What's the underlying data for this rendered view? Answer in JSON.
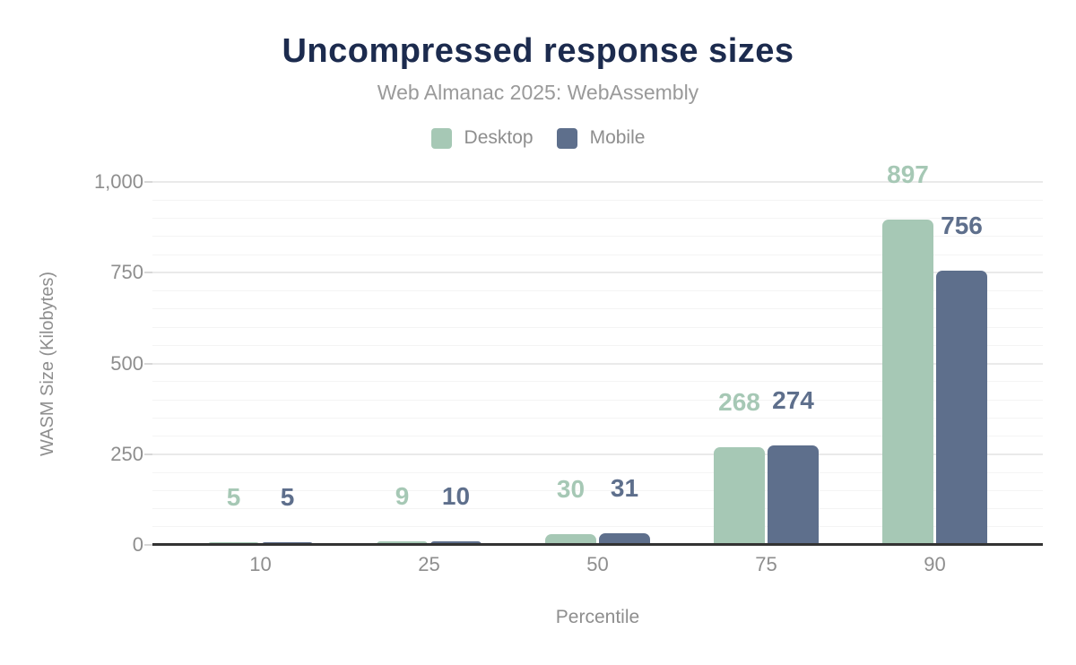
{
  "header": {
    "title": "Uncompressed response sizes",
    "subtitle": "Web Almanac 2025: WebAssembly"
  },
  "legend": {
    "items": [
      {
        "label": "Desktop",
        "color": "#a6c8b5"
      },
      {
        "label": "Mobile",
        "color": "#5e6f8c"
      }
    ]
  },
  "axes": {
    "x_title": "Percentile",
    "y_title": "WASM Size (Kilobytes)",
    "y_ticks": [
      {
        "value": 0,
        "label": "0"
      },
      {
        "value": 250,
        "label": "250"
      },
      {
        "value": 500,
        "label": "500"
      },
      {
        "value": 750,
        "label": "750"
      },
      {
        "value": 1000,
        "label": "1,000"
      }
    ]
  },
  "chart_data": {
    "type": "bar",
    "title": "Uncompressed response sizes",
    "subtitle": "Web Almanac 2025: WebAssembly",
    "xlabel": "Percentile",
    "ylabel": "WASM Size (Kilobytes)",
    "categories": [
      "10",
      "25",
      "50",
      "75",
      "90"
    ],
    "series": [
      {
        "name": "Desktop",
        "color": "#a6c8b5",
        "values": [
          5,
          9,
          30,
          268,
          897
        ]
      },
      {
        "name": "Mobile",
        "color": "#5e6f8c",
        "values": [
          5,
          10,
          31,
          274,
          756
        ]
      }
    ],
    "ylim": [
      0,
      1000
    ],
    "grid": "horizontal, minor every 50, major every 250",
    "legend_position": "top",
    "data_labels": true
  },
  "colors": {
    "title": "#1c2b4e",
    "subtitle": "#9a9a9a",
    "tick_label": "#8e8e8e",
    "axis_line": "#333333",
    "gridline_minor": "#f4f4f4",
    "gridline_major": "#eaeaea",
    "background": "#ffffff"
  }
}
